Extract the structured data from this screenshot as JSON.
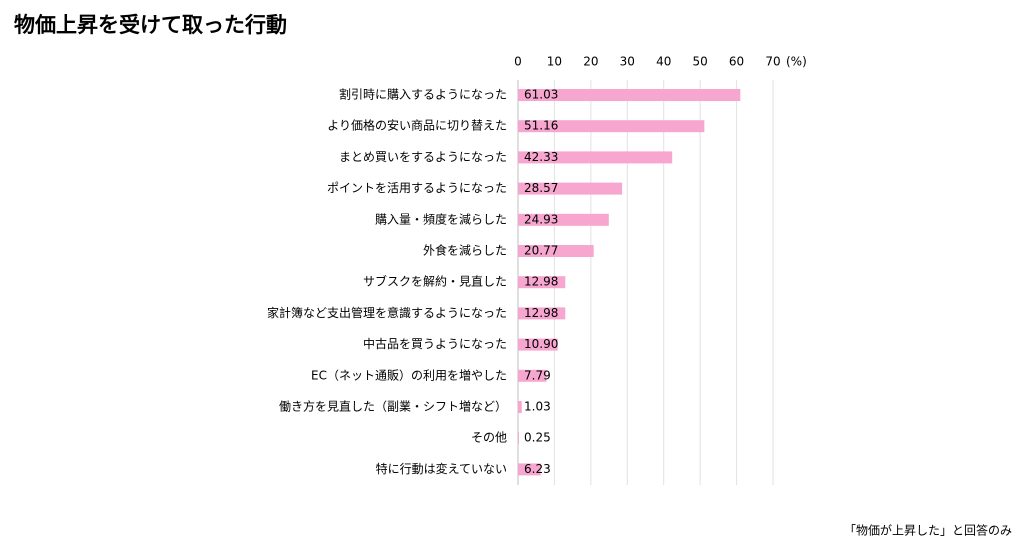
{
  "chart_data": {
    "type": "hbar",
    "title": "物価上昇を受けて取った行動",
    "x_unit": "(%)",
    "footnote": "「物価が上昇した」と回答のみ",
    "categories": [
      "割引時に購入するようになった",
      "より価格の安い商品に切り替えた",
      "まとめ買いをするようになった",
      "ポイントを活用するようになった",
      "購入量・頻度を減らした",
      "外食を減らした",
      "サブスクを解約・見直した",
      "家計簿など支出管理を意識するようになった",
      "中古品を買うようになった",
      "EC（ネット通販）の利用を増やした",
      "働き方を見直した（副業・シフト増など）",
      "その他",
      "特に行動は変えていない"
    ],
    "values": [
      61.03,
      51.16,
      42.33,
      28.57,
      24.93,
      20.77,
      12.98,
      12.98,
      10.9,
      7.79,
      1.03,
      0.25,
      6.23
    ],
    "value_labels": [
      "61.03",
      "51.16",
      "42.33",
      "28.57",
      "24.93",
      "20.77",
      "12.98",
      "12.98",
      "10.90",
      "7.79",
      "1.03",
      "0.25",
      "6.23"
    ],
    "color": "#f7a6cf",
    "xlim": [
      0,
      70
    ],
    "xticks": [
      0,
      10,
      20,
      30,
      40,
      50,
      60,
      70
    ],
    "grid": true
  }
}
